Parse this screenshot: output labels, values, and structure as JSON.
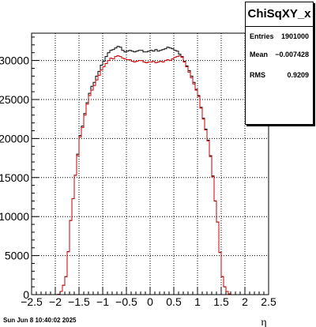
{
  "stats": {
    "title": "ChiSqXY_x",
    "rows": [
      {
        "label": "Entries",
        "value": "1901000"
      },
      {
        "label": "Mean",
        "value": "−0.007428"
      },
      {
        "label": "RMS",
        "value": "0.9209"
      }
    ]
  },
  "timestamp": "Sun Jun  8 10:40:02 2025",
  "chart_data": {
    "type": "step-histogram",
    "title": "ChiSqXY_x",
    "xlabel": "η",
    "ylabel": "",
    "xlim": [
      -2.5,
      2.5
    ],
    "ylim": [
      0,
      33500
    ],
    "grid": true,
    "x_ticks": [
      "−2.5",
      "−2",
      "−1.5",
      "−1",
      "−0.5",
      "0",
      "0.5",
      "1",
      "1.5",
      "2",
      "2.5"
    ],
    "y_ticks": [
      "0",
      "5000",
      "10000",
      "15000",
      "20000",
      "25000",
      "30000"
    ],
    "bin_edges_start": -2.5,
    "bin_width": 0.05,
    "series": [
      {
        "color": "#000000",
        "values": [
          0,
          0,
          0,
          0,
          0,
          0,
          0,
          0,
          0,
          0,
          0,
          50,
          400,
          1200,
          2300,
          5500,
          9500,
          12300,
          15300,
          18000,
          20400,
          21600,
          23200,
          24600,
          25800,
          26700,
          27200,
          28000,
          28600,
          29400,
          29900,
          30500,
          31000,
          31300,
          31400,
          31600,
          31800,
          31700,
          31300,
          31100,
          31200,
          31300,
          31200,
          31100,
          31200,
          31300,
          31300,
          31100,
          31100,
          31200,
          31300,
          31200,
          31400,
          31200,
          31300,
          31400,
          31500,
          31700,
          31600,
          31500,
          31300,
          31200,
          30800,
          30500,
          29900,
          29300,
          28700,
          28000,
          27200,
          26300,
          25500,
          24000,
          22600,
          21200,
          19800,
          17800,
          15200,
          12000,
          9300,
          5400,
          2300,
          1000,
          400,
          100,
          0,
          0,
          0,
          0,
          0,
          0,
          0,
          0,
          0,
          0,
          0,
          0,
          0,
          0,
          0,
          0
        ]
      },
      {
        "color": "#cc0000",
        "values": [
          0,
          0,
          0,
          0,
          0,
          0,
          0,
          0,
          0,
          0,
          0,
          50,
          400,
          1200,
          2300,
          5500,
          9500,
          12300,
          15300,
          17800,
          20200,
          21400,
          23000,
          24400,
          25500,
          26200,
          26800,
          27500,
          28100,
          28800,
          29200,
          29600,
          30000,
          30300,
          30200,
          30500,
          30600,
          30500,
          30300,
          30200,
          30100,
          30100,
          29900,
          29800,
          29900,
          30000,
          30000,
          29800,
          29700,
          29800,
          29800,
          29900,
          29700,
          29800,
          29900,
          29800,
          30000,
          30100,
          30000,
          30200,
          30400,
          30500,
          30600,
          30400,
          29800,
          29200,
          28500,
          27800,
          27000,
          26200,
          25400,
          23900,
          22500,
          21100,
          19700,
          17700,
          15100,
          12000,
          9300,
          5400,
          2300,
          1000,
          400,
          100,
          0,
          0,
          0,
          0,
          0,
          0,
          0,
          0,
          0,
          0,
          0,
          0,
          0,
          0,
          0,
          0
        ]
      }
    ]
  }
}
